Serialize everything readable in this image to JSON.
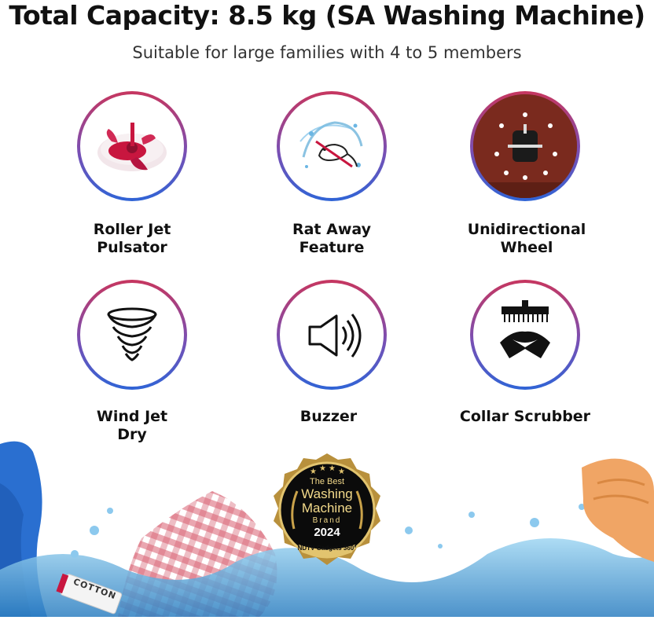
{
  "header": {
    "title": "Total Capacity: 8.5 kg (SA Washing Machine)",
    "subtitle": "Suitable for large families with 4 to 5 members"
  },
  "features": [
    {
      "line1": "Roller Jet",
      "line2": "Pulsator",
      "icon": "roller-jet-pulsator-icon"
    },
    {
      "line1": "Rat Away",
      "line2": "Feature",
      "icon": "rat-away-icon"
    },
    {
      "line1": "Unidirectional",
      "line2": "Wheel",
      "icon": "unidirectional-wheel-icon"
    },
    {
      "line1": "Wind Jet",
      "line2": "Dry",
      "icon": "wind-jet-dry-icon"
    },
    {
      "line1": "Buzzer",
      "line2": "",
      "icon": "buzzer-speaker-icon"
    },
    {
      "line1": "Collar Scrubber",
      "line2": "",
      "icon": "collar-scrubber-icon"
    }
  ],
  "badge": {
    "line1": "The Best",
    "line2": "Washing",
    "line3": "Machine",
    "line4": "Brand",
    "year": "2024",
    "source": "NDTV Gadgets 360°"
  },
  "tag": {
    "text": "COTTON"
  },
  "colors": {
    "ring_top": "#c7365f",
    "ring_bottom": "#2f64d6",
    "badge_gold": "#c9a24a",
    "water": "#4aa8e0"
  }
}
